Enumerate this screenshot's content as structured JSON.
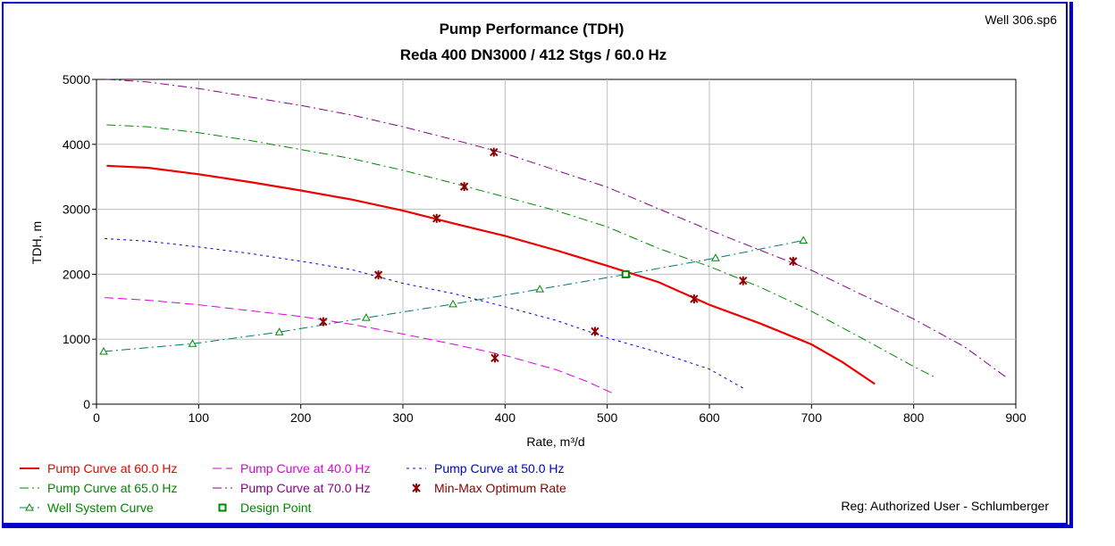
{
  "file_label": "Well 306.sp6",
  "registration": "Reg: Authorized User - Schlumberger",
  "chart_data": {
    "type": "line",
    "title": "Pump Performance (TDH)",
    "subtitle": "Reda 400 DN3000 / 412 Stgs / 60.0 Hz",
    "xlabel": "Rate, m³/d",
    "ylabel": "TDH, m",
    "xlim": [
      0,
      900
    ],
    "ylim": [
      0,
      5000
    ],
    "xticks": [
      0,
      100,
      200,
      300,
      400,
      500,
      600,
      700,
      800,
      900
    ],
    "yticks": [
      0,
      1000,
      2000,
      3000,
      4000,
      5000
    ],
    "xtick_labels": [
      "0",
      "100",
      "200",
      "300",
      "400",
      "500",
      "600",
      "700",
      "800",
      "900"
    ],
    "ytick_labels": [
      "0",
      "1000",
      "2000",
      "3000",
      "4000",
      "5000"
    ],
    "grid": true,
    "legend_position": "bottom",
    "series": [
      {
        "name": "Pump Curve at 60.0 Hz",
        "color": "#ee0000",
        "dash": "",
        "width": 2.2,
        "points": [
          [
            10,
            3670
          ],
          [
            50,
            3640
          ],
          [
            100,
            3540
          ],
          [
            150,
            3420
          ],
          [
            200,
            3290
          ],
          [
            250,
            3150
          ],
          [
            300,
            2980
          ],
          [
            350,
            2780
          ],
          [
            400,
            2590
          ],
          [
            450,
            2370
          ],
          [
            500,
            2130
          ],
          [
            550,
            1880
          ],
          [
            600,
            1530
          ],
          [
            650,
            1240
          ],
          [
            700,
            920
          ],
          [
            730,
            650
          ],
          [
            762,
            310
          ]
        ]
      },
      {
        "name": "Pump Curve at 40.0 Hz",
        "color": "#dd00dd",
        "dash": "10 5",
        "width": 1,
        "points": [
          [
            8,
            1640
          ],
          [
            50,
            1600
          ],
          [
            100,
            1530
          ],
          [
            150,
            1440
          ],
          [
            200,
            1350
          ],
          [
            250,
            1230
          ],
          [
            300,
            1080
          ],
          [
            350,
            920
          ],
          [
            400,
            750
          ],
          [
            450,
            530
          ],
          [
            480,
            350
          ],
          [
            505,
            170
          ]
        ]
      },
      {
        "name": "Pump Curve at 50.0 Hz",
        "color": "#0000cc",
        "dash": "3 4",
        "width": 1,
        "points": [
          [
            8,
            2550
          ],
          [
            50,
            2510
          ],
          [
            100,
            2420
          ],
          [
            150,
            2320
          ],
          [
            200,
            2200
          ],
          [
            250,
            2070
          ],
          [
            300,
            1860
          ],
          [
            350,
            1700
          ],
          [
            400,
            1500
          ],
          [
            450,
            1290
          ],
          [
            500,
            1020
          ],
          [
            550,
            800
          ],
          [
            600,
            540
          ],
          [
            635,
            230
          ]
        ]
      },
      {
        "name": "Pump Curve at 65.0 Hz",
        "color": "#008800",
        "dash": "10 4 2 4",
        "width": 1,
        "points": [
          [
            10,
            4300
          ],
          [
            50,
            4270
          ],
          [
            100,
            4180
          ],
          [
            150,
            4060
          ],
          [
            200,
            3920
          ],
          [
            250,
            3780
          ],
          [
            300,
            3600
          ],
          [
            350,
            3400
          ],
          [
            400,
            3190
          ],
          [
            450,
            2980
          ],
          [
            500,
            2730
          ],
          [
            550,
            2400
          ],
          [
            600,
            2120
          ],
          [
            650,
            1800
          ],
          [
            700,
            1430
          ],
          [
            750,
            1010
          ],
          [
            800,
            580
          ],
          [
            820,
            420
          ]
        ]
      },
      {
        "name": "Pump Curve at 70.0 Hz",
        "color": "#880088",
        "dash": "10 4 2 4",
        "width": 1,
        "points": [
          [
            10,
            5000
          ],
          [
            50,
            4960
          ],
          [
            100,
            4860
          ],
          [
            150,
            4730
          ],
          [
            200,
            4600
          ],
          [
            250,
            4450
          ],
          [
            300,
            4270
          ],
          [
            350,
            4070
          ],
          [
            400,
            3860
          ],
          [
            450,
            3600
          ],
          [
            500,
            3340
          ],
          [
            550,
            3010
          ],
          [
            600,
            2680
          ],
          [
            650,
            2370
          ],
          [
            700,
            2060
          ],
          [
            750,
            1680
          ],
          [
            800,
            1310
          ],
          [
            850,
            880
          ],
          [
            890,
            420
          ]
        ]
      },
      {
        "name": "Well System Curve",
        "color": "#007777",
        "dash": "10 4 2 4",
        "width": 1,
        "points": [
          [
            7,
            810
          ],
          [
            94,
            930
          ],
          [
            179,
            1110
          ],
          [
            264,
            1330
          ],
          [
            349,
            1540
          ],
          [
            434,
            1770
          ],
          [
            519,
            2000
          ],
          [
            606,
            2250
          ],
          [
            692,
            2520
          ]
        ],
        "marker": "triangle",
        "marker_color": "#008800"
      }
    ],
    "min_max_optimum_rate": {
      "name": "Min-Max Optimum Rate",
      "color": "#8b0000",
      "points": [
        [
          222,
          1270
        ],
        [
          276,
          1990
        ],
        [
          333,
          2860
        ],
        [
          360,
          3350
        ],
        [
          389,
          3880
        ],
        [
          390,
          710
        ],
        [
          488,
          1120
        ],
        [
          585,
          1620
        ],
        [
          633,
          1900
        ],
        [
          682,
          2200
        ]
      ]
    },
    "design_point": {
      "name": "Design Point",
      "color": "#008800",
      "point": [
        518,
        2000
      ]
    }
  }
}
